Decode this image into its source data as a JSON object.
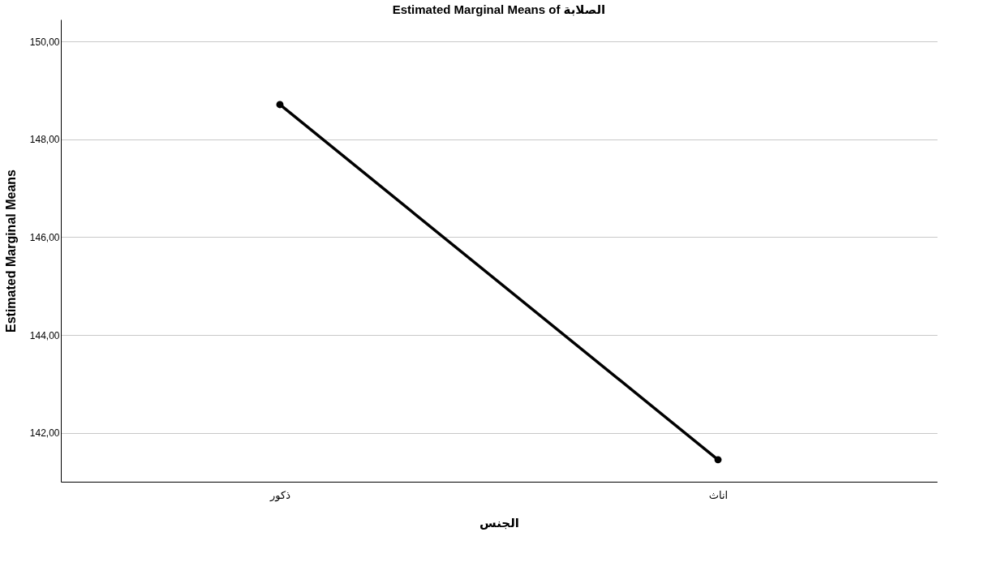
{
  "chart_data": {
    "type": "line",
    "title": "Estimated Marginal Means of الصلابة",
    "xlabel": "الجنس",
    "ylabel": "Estimated Marginal Means",
    "categories": [
      "ذكور",
      "اناث"
    ],
    "series": [
      {
        "color": "#000000",
        "values": [
          148.71,
          141.45
        ]
      }
    ],
    "ylim": [
      141.0,
      150.45
    ],
    "yticks": [
      {
        "value": 142,
        "label": "142,00"
      },
      {
        "value": 144,
        "label": "144,00"
      },
      {
        "value": 146,
        "label": "146,00"
      },
      {
        "value": 148,
        "label": "148,00"
      },
      {
        "value": 150,
        "label": "150,00"
      }
    ],
    "grid": "y",
    "marker": "circle",
    "line_style": "solid",
    "legend": false
  }
}
